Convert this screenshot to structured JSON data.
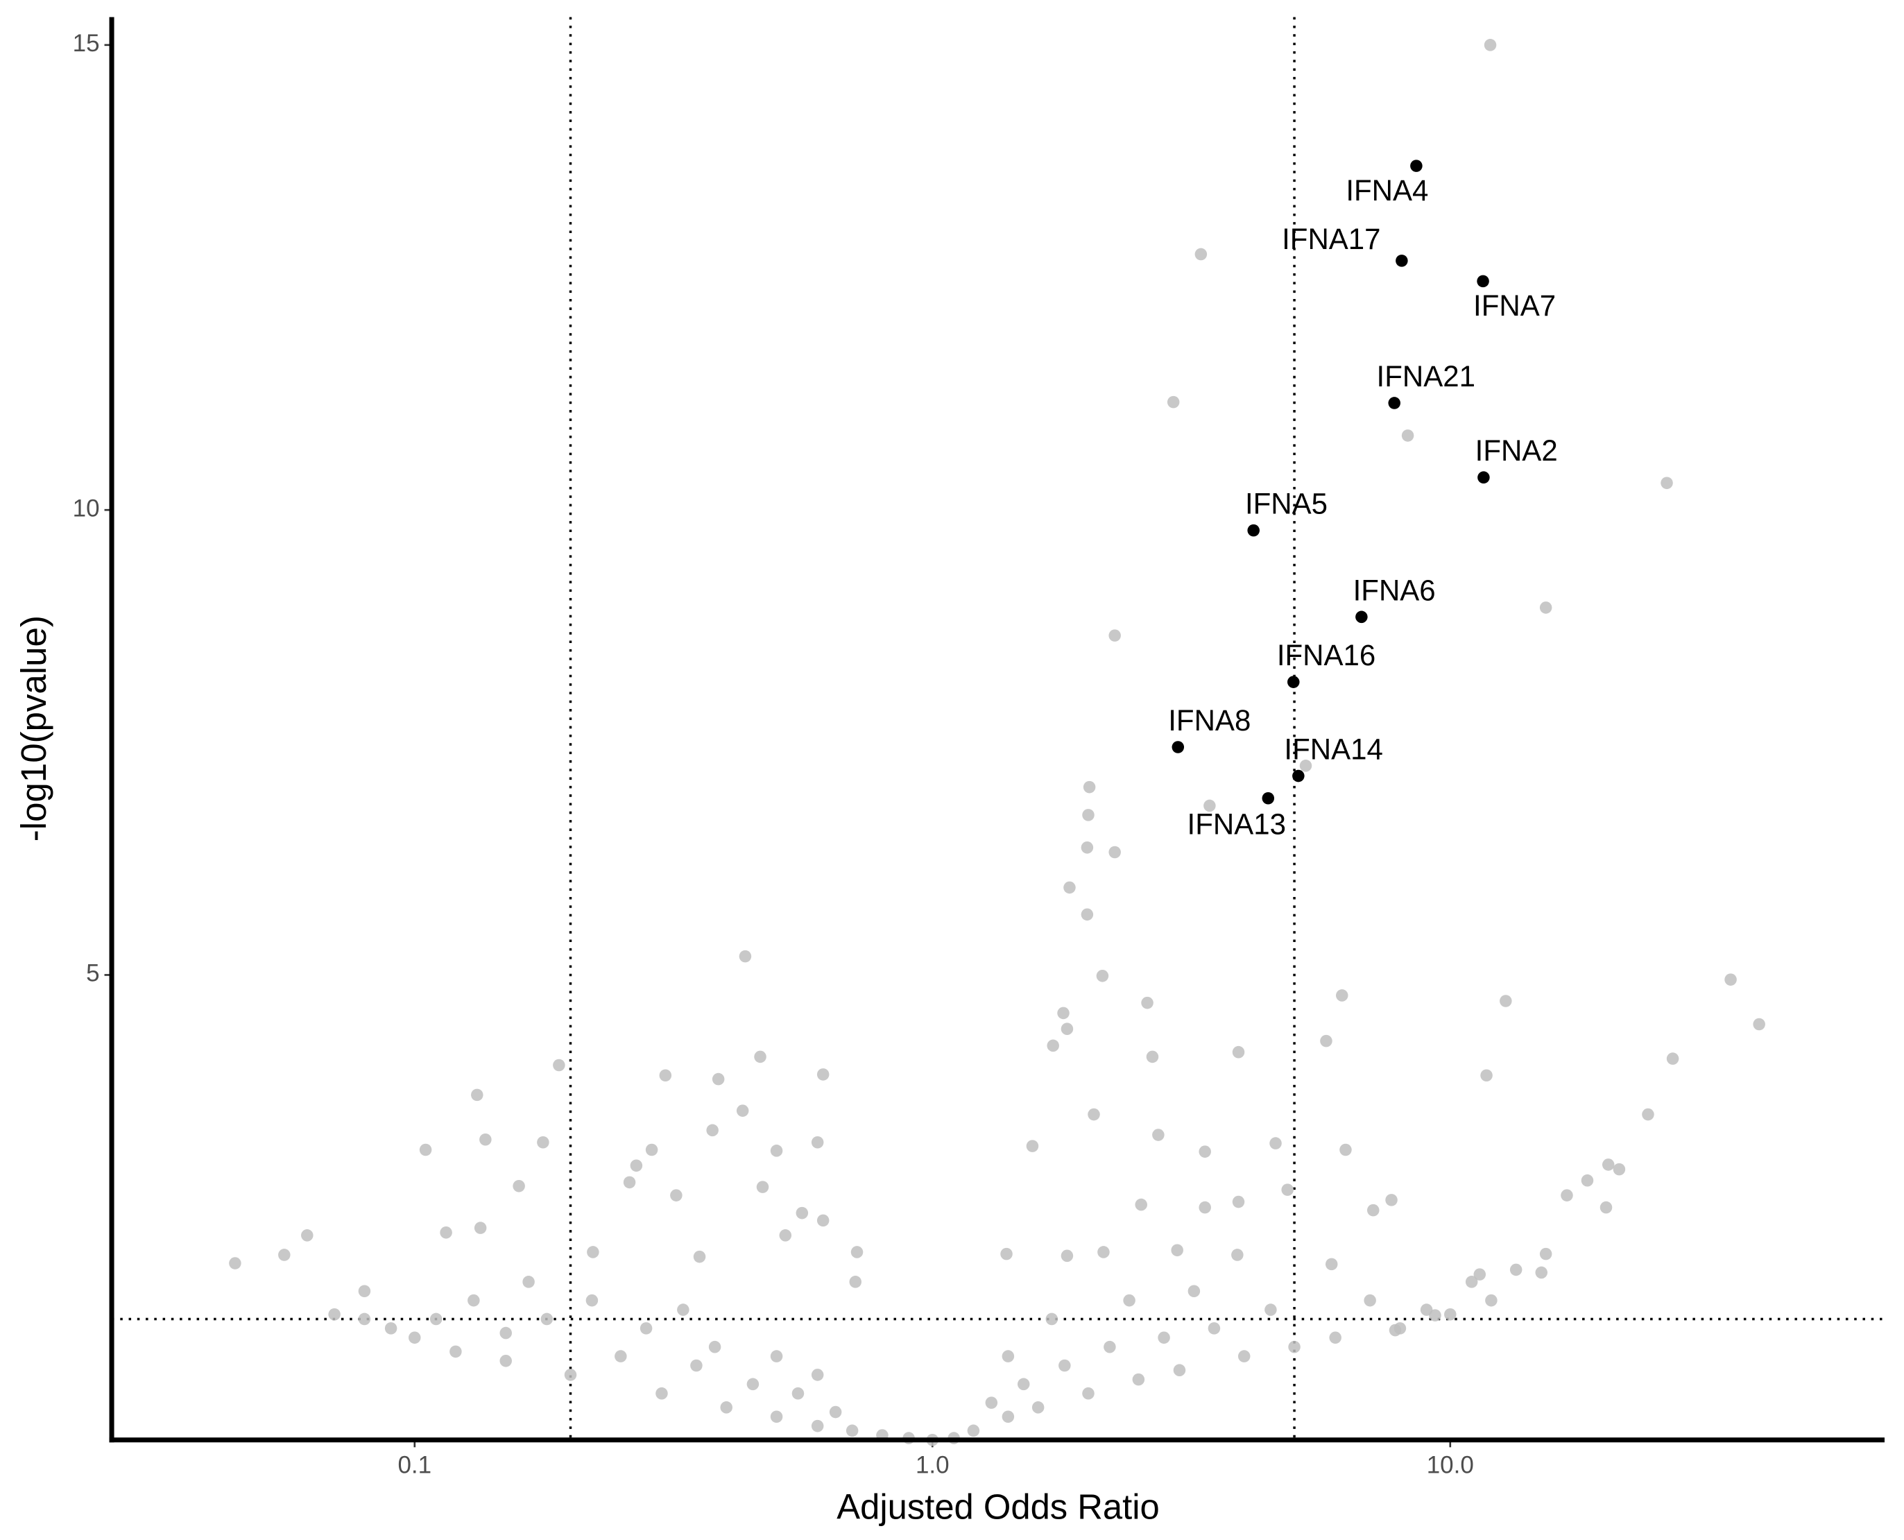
{
  "chart_data": {
    "type": "scatter",
    "x_label": "Adjusted Odds Ratio",
    "y_label": "-log10(pvalue)",
    "log_x": true,
    "xlim": [
      0.026,
      69
    ],
    "ylim": [
      0,
      15.3
    ],
    "xticks": [
      0.1,
      {
        "value": 1,
        "label": "1.0"
      },
      {
        "value": 10,
        "label": "10.0"
      }
    ],
    "yticks": [
      5,
      10,
      15
    ],
    "vlines": [
      0.2,
      5
    ],
    "hlines": [
      1.3
    ],
    "series": [
      {
        "color": "#bebebe",
        "x": [
          11.95,
          3.3,
          2.92,
          8.28,
          26.2,
          15.3,
          2.25,
          2.01,
          2.0,
          1.99,
          2.25,
          5.26,
          3.43,
          1.84,
          1.99,
          2.13,
          0.435,
          34.8,
          12.8,
          6.18,
          2.6,
          1.79,
          1.82,
          1.71,
          5.76,
          3.9,
          39.5,
          26.9,
          2.66,
          0.465,
          11.75,
          0.19,
          0.305,
          0.386,
          0.615,
          0.132,
          2.05,
          24.1,
          0.43,
          0.376,
          2.73,
          0.137,
          0.177,
          0.6,
          0.5,
          0.105,
          0.287,
          1.56,
          3.36,
          4.6,
          6.28,
          21.2,
          20.2,
          18.4,
          0.268,
          0.26,
          0.47,
          0.159,
          0.32,
          16.8,
          4.85,
          7.7,
          7.1,
          2.53,
          3.36,
          3.9,
          0.134,
          0.115,
          0.56,
          0.52,
          0.615,
          0.062,
          0.045,
          0.056,
          15.3,
          13.4,
          0.715,
          0.221,
          0.355,
          1.39,
          1.82,
          2.14,
          2.97,
          3.88,
          5.9,
          11.4,
          0.166,
          0.71,
          0.08,
          9.35,
          7.83,
          0.07,
          0.08,
          0.1,
          0.12,
          0.15,
          0.2,
          0.3,
          0.4,
          0.5,
          0.6,
          0.7,
          0.8,
          0.9,
          1.0,
          1.1,
          1.2,
          1.4,
          1.6,
          2,
          2.5,
          3,
          4,
          5,
          6,
          8,
          10,
          12,
          15,
          20,
          0.25,
          0.35,
          0.45,
          0.55,
          0.65,
          1.3,
          1.5,
          1.8,
          2.2,
          2.8,
          3.5,
          4.5,
          0.15,
          0.18,
          0.22,
          0.28,
          0.33,
          0.38,
          0.5,
          0.6,
          1.4,
          1.7,
          2.4,
          3.2,
          7,
          9,
          11,
          0.09,
          0.11,
          0.13
        ],
        "y": [
          15.0,
          12.75,
          11.16,
          10.8,
          10.29,
          8.95,
          8.65,
          7.02,
          6.72,
          6.37,
          6.32,
          7.25,
          6.82,
          5.94,
          5.65,
          4.99,
          5.2,
          4.95,
          4.72,
          4.78,
          4.7,
          4.59,
          4.42,
          4.24,
          4.29,
          4.17,
          4.47,
          4.1,
          4.12,
          4.12,
          3.92,
          4.03,
          3.92,
          3.88,
          3.93,
          3.71,
          3.5,
          3.5,
          3.54,
          3.33,
          3.28,
          3.23,
          3.2,
          3.2,
          3.11,
          3.12,
          3.12,
          3.16,
          3.1,
          3.19,
          3.12,
          2.91,
          2.96,
          2.79,
          2.95,
          2.77,
          2.72,
          2.73,
          2.63,
          2.63,
          2.69,
          2.58,
          2.47,
          2.53,
          2.5,
          2.56,
          2.28,
          2.23,
          2.44,
          2.2,
          2.36,
          2.2,
          1.9,
          1.99,
          2.0,
          1.83,
          2.02,
          2.02,
          1.97,
          2.0,
          1.98,
          2.02,
          2.04,
          1.99,
          1.89,
          1.78,
          1.7,
          1.7,
          1.6,
          1.34,
          1.18,
          1.35,
          1.3,
          1.1,
          0.95,
          0.85,
          0.7,
          0.5,
          0.35,
          0.25,
          0.15,
          0.1,
          0.05,
          0.02,
          0.0,
          0.02,
          0.1,
          0.25,
          0.35,
          0.5,
          0.65,
          0.75,
          0.9,
          1.0,
          1.1,
          1.2,
          1.35,
          1.5,
          1.8,
          2.5,
          0.9,
          0.8,
          0.6,
          0.5,
          0.3,
          0.4,
          0.6,
          0.8,
          1.0,
          1.1,
          1.2,
          1.4,
          1.15,
          1.3,
          1.5,
          1.2,
          1.4,
          1.0,
          0.9,
          0.7,
          0.9,
          1.3,
          1.5,
          1.6,
          1.5,
          1.4,
          1.7,
          1.2,
          1.3,
          1.5
        ]
      },
      {
        "color": "#000000",
        "labels": [
          "IFNA4",
          "IFNA17",
          "IFNA7",
          "IFNA21",
          "IFNA2",
          "IFNA5",
          "IFNA6",
          "IFNA16",
          "IFNA8",
          "IFNA14",
          "IFNA13"
        ],
        "x": [
          8.6,
          8.06,
          11.57,
          7.8,
          11.6,
          4.17,
          6.74,
          4.98,
          2.98,
          5.09,
          4.45
        ],
        "y": [
          13.7,
          12.68,
          12.46,
          11.15,
          10.35,
          9.78,
          8.85,
          8.15,
          7.45,
          7.14,
          6.9
        ]
      }
    ]
  }
}
